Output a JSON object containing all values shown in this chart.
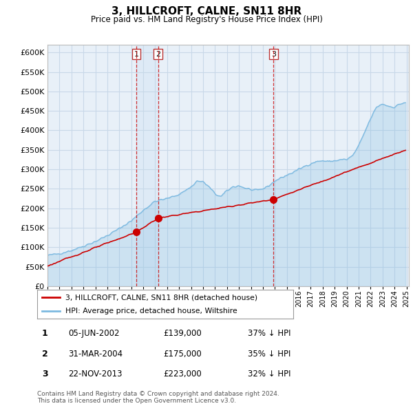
{
  "title": "3, HILLCROFT, CALNE, SN11 8HR",
  "subtitle": "Price paid vs. HM Land Registry's House Price Index (HPI)",
  "hpi_color": "#7cb9e0",
  "hpi_fill_color": "#ddeeff",
  "price_color": "#cc0000",
  "vline_color": "#cc0000",
  "background_color": "#f0f4f8",
  "chart_bg": "#e8f0f8",
  "grid_color": "#c8d8e8",
  "ylim": [
    0,
    620000
  ],
  "yticks": [
    0,
    50000,
    100000,
    150000,
    200000,
    250000,
    300000,
    350000,
    400000,
    450000,
    500000,
    550000,
    600000
  ],
  "xlim_start": 1995.25,
  "xlim_end": 2025.2,
  "purchases": [
    {
      "label": "1",
      "date": "05-JUN-2002",
      "year": 2002.43,
      "price": 139000,
      "hpi_pct": "37% ↓ HPI"
    },
    {
      "label": "2",
      "date": "31-MAR-2004",
      "year": 2004.25,
      "price": 175000,
      "hpi_pct": "35% ↓ HPI"
    },
    {
      "label": "3",
      "date": "22-NOV-2013",
      "year": 2013.89,
      "price": 223000,
      "hpi_pct": "32% ↓ HPI"
    }
  ],
  "legend_label_price": "3, HILLCROFT, CALNE, SN11 8HR (detached house)",
  "legend_label_hpi": "HPI: Average price, detached house, Wiltshire",
  "footnote": "Contains HM Land Registry data © Crown copyright and database right 2024.\nThis data is licensed under the Open Government Licence v3.0."
}
